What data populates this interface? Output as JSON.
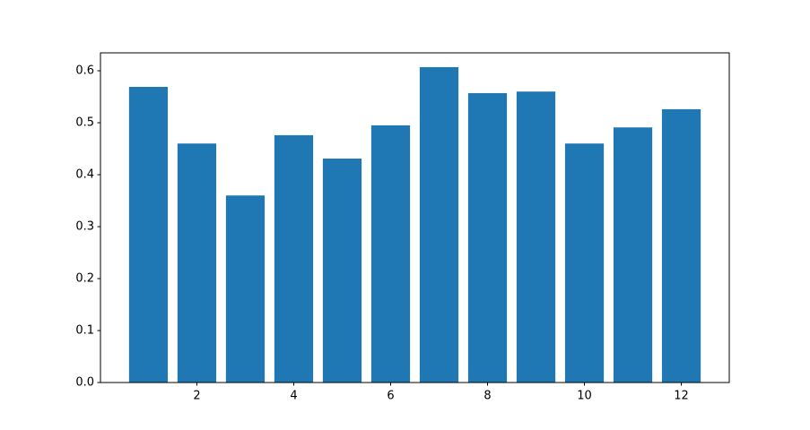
{
  "chart_data": {
    "type": "bar",
    "x": [
      1,
      2,
      3,
      4,
      5,
      6,
      7,
      8,
      9,
      10,
      11,
      12
    ],
    "values": [
      0.569,
      0.46,
      0.36,
      0.476,
      0.431,
      0.495,
      0.607,
      0.557,
      0.56,
      0.46,
      0.491,
      0.526
    ],
    "color": "#1f77b4",
    "xlim": [
      0.01,
      12.99
    ],
    "xticks": [
      2,
      4,
      6,
      8,
      10,
      12
    ],
    "ylim": [
      0,
      0.6345
    ],
    "yticks": [
      {
        "value": 0,
        "label": "0.0"
      },
      0.1,
      0.2,
      0.3,
      0.4,
      0.5,
      0.6
    ]
  }
}
